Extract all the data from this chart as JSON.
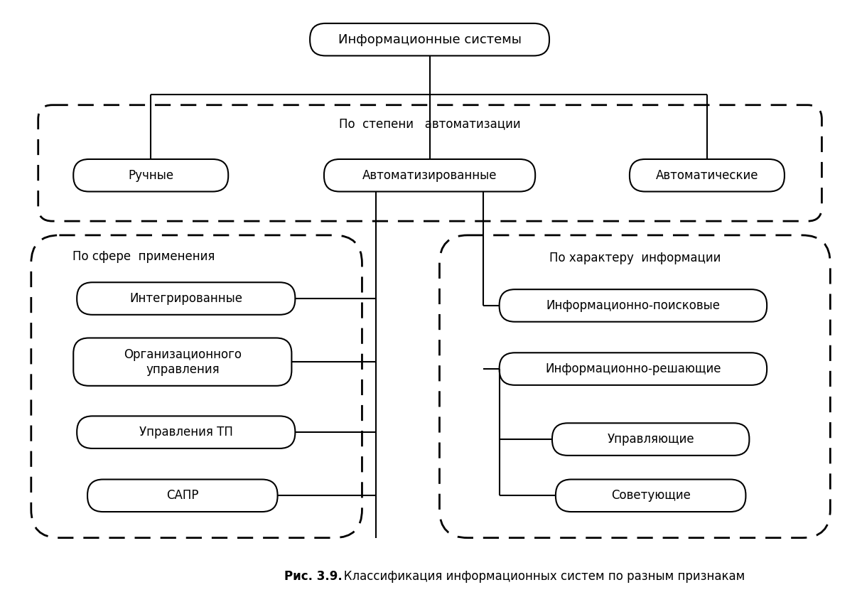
{
  "title": "Информационные системы",
  "caption_bold": "Рис. 3.9.",
  "caption_rest": "   Классификация информационных систем по разным признакам",
  "top_label": "По  степени   автоматизации",
  "left_group_label": "По сфере  применения",
  "right_group_label": "По характеру  информации",
  "bg_color": "#ffffff",
  "box_facecolor": "#ffffff",
  "box_edgecolor": "#000000",
  "font_size": 12,
  "title_font_size": 13
}
